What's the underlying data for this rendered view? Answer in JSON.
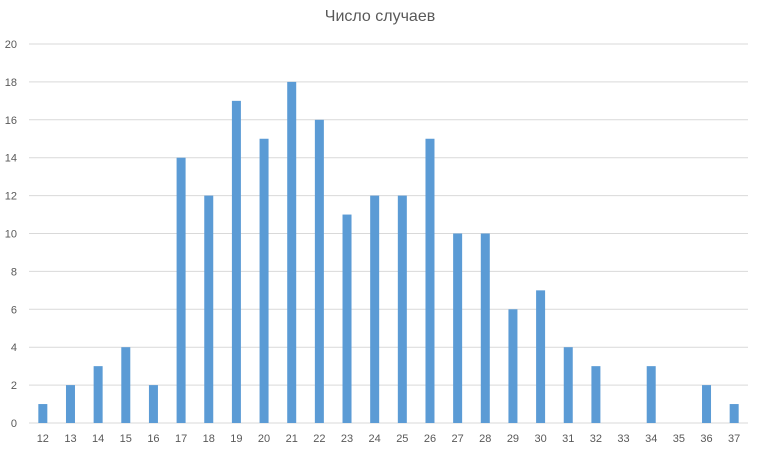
{
  "chart_data": {
    "type": "bar",
    "title": "Число случаев",
    "xlabel": "",
    "ylabel": "",
    "ylim": [
      0,
      20
    ],
    "yticks": [
      "0",
      "2",
      "4",
      "6",
      "8",
      "10",
      "12",
      "14",
      "16",
      "18",
      "20"
    ],
    "grid": true,
    "legend": "none",
    "categories": [
      "12",
      "13",
      "14",
      "15",
      "16",
      "17",
      "18",
      "19",
      "20",
      "21",
      "22",
      "23",
      "24",
      "25",
      "26",
      "27",
      "28",
      "29",
      "30",
      "31",
      "32",
      "33",
      "34",
      "35",
      "36",
      "37"
    ],
    "values": [
      1,
      2,
      3,
      4,
      2,
      14,
      12,
      17,
      15,
      18,
      16,
      11,
      12,
      12,
      15,
      10,
      10,
      6,
      7,
      4,
      3,
      0,
      3,
      0,
      2,
      1
    ],
    "colors": {
      "bar": "#5b9bd5",
      "grid": "#d9d9d9",
      "text": "#595959"
    }
  }
}
